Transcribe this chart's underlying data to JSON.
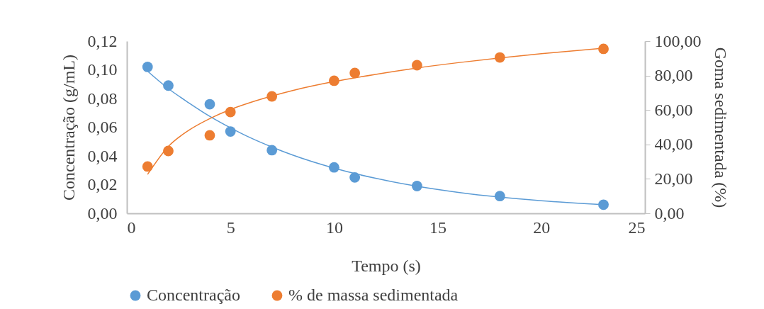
{
  "chart_data": {
    "type": "scatter",
    "xlabel": "Tempo (s)",
    "ylabel": "Concentração (g/mL)",
    "y2label": "Goma sedimentada (%)",
    "legend": "bottom",
    "xlim": [
      0,
      25
    ],
    "xticks": [
      0,
      5,
      10,
      15,
      20,
      25
    ],
    "ylim": [
      0,
      0.12
    ],
    "yticks": [
      {
        "value": 0,
        "label": "0,00"
      },
      {
        "value": 0.02,
        "label": "0,02"
      },
      {
        "value": 0.04,
        "label": "0,04"
      },
      {
        "value": 0.06,
        "label": "0,06"
      },
      {
        "value": 0.08,
        "label": "0,08"
      },
      {
        "value": 0.1,
        "label": "0,10"
      },
      {
        "value": 0.12,
        "label": "0,12"
      }
    ],
    "y2lim": [
      0,
      100
    ],
    "y2ticks": [
      {
        "value": 0,
        "label": "0,00"
      },
      {
        "value": 20,
        "label": "20,00"
      },
      {
        "value": 40,
        "label": "40,00"
      },
      {
        "value": 60,
        "label": "60,00"
      },
      {
        "value": 80,
        "label": "80,00"
      },
      {
        "value": 100,
        "label": "100,00"
      }
    ],
    "series": [
      {
        "name": "Concentração",
        "color": "#5b9bd5",
        "marker": "circle",
        "x": [
          1,
          2,
          4,
          5,
          7,
          10,
          11,
          14,
          18,
          23
        ],
        "values": [
          0.102,
          0.089,
          0.076,
          0.057,
          0.044,
          0.032,
          0.025,
          0.019,
          0.012,
          0.006
        ]
      },
      {
        "name": "% de massa sedimentada",
        "color": "#ed7d31",
        "marker": "circle",
        "axis": "y2",
        "x": [
          1,
          2,
          4,
          5,
          7,
          10,
          11,
          14,
          18,
          23
        ],
        "values": [
          27.2,
          36.2,
          45.3,
          58.8,
          67.9,
          77.0,
          81.5,
          86.0,
          90.5,
          95.5
        ]
      },
      {
        "type": "line",
        "marker": "none",
        "color": "#5b9bd5",
        "x": [
          1,
          2,
          3,
          4,
          5,
          6,
          7,
          8,
          10,
          12,
          14,
          16,
          18,
          20,
          23
        ],
        "values": [
          0.099,
          0.0869,
          0.0769,
          0.0676,
          0.0596,
          0.0524,
          0.0462,
          0.0406,
          0.0315,
          0.0244,
          0.0189,
          0.0146,
          0.0113,
          0.0088,
          0.006
        ]
      },
      {
        "type": "line",
        "marker": "none",
        "color": "#ed7d31",
        "axis": "y2",
        "x": [
          1,
          2,
          3,
          4,
          5,
          6,
          7,
          8,
          10,
          12,
          14,
          16,
          18,
          20,
          23
        ],
        "values": [
          22.6,
          38.8,
          48.3,
          55.0,
          60.3,
          64.5,
          68.1,
          71.3,
          76.5,
          80.7,
          84.4,
          87.5,
          90.2,
          92.7,
          95.9
        ]
      }
    ]
  }
}
